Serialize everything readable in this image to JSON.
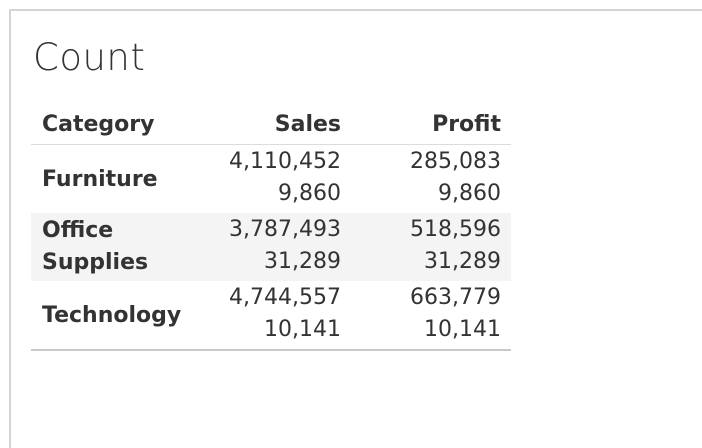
{
  "sheet": {
    "title": "Count"
  },
  "crosstab": {
    "headers": {
      "category": "Category",
      "sales": "Sales",
      "profit": "Profit"
    },
    "rows": [
      {
        "category_lines": [
          "Furniture"
        ],
        "sales": [
          "4,110,452",
          "9,860"
        ],
        "profit": [
          "285,083",
          "9,860"
        ]
      },
      {
        "category_lines": [
          "Office",
          "Supplies"
        ],
        "sales": [
          "3,787,493",
          "31,289"
        ],
        "profit": [
          "518,596",
          "31,289"
        ]
      },
      {
        "category_lines": [
          "Technology"
        ],
        "sales": [
          "4,744,557",
          "10,141"
        ],
        "profit": [
          "663,779",
          "10,141"
        ]
      }
    ]
  }
}
